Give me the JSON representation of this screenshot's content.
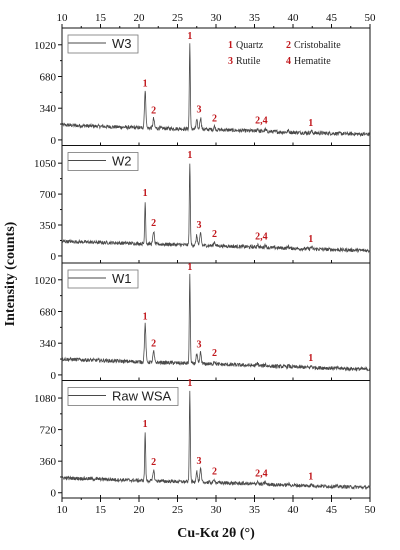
{
  "chart_data": {
    "type": "line",
    "xlabel": "Cu-Kα 2θ (°)",
    "ylabel": "Intensity (counts)",
    "xlim": [
      10,
      50
    ],
    "x_ticks": [
      "10",
      "15",
      "20",
      "25",
      "30",
      "35",
      "40",
      "45",
      "50"
    ],
    "phase_key": [
      {
        "num": "1",
        "name": "Quartz"
      },
      {
        "num": "2",
        "name": "Cristobalite"
      },
      {
        "num": "3",
        "name": "Rutile"
      },
      {
        "num": "4",
        "name": "Hematite"
      }
    ],
    "panels": [
      {
        "name": "W3",
        "ylim": [
          -60,
          1200
        ],
        "y_ticks": [
          0,
          340,
          680,
          1020
        ],
        "baseline": [
          [
            10,
            160
          ],
          [
            20,
            130
          ],
          [
            30,
            110
          ],
          [
            40,
            80
          ],
          [
            50,
            60
          ]
        ],
        "peaks": [
          {
            "x": 20.8,
            "y": 520
          },
          {
            "x": 21.9,
            "y": 230
          },
          {
            "x": 26.6,
            "y": 1030
          },
          {
            "x": 27.5,
            "y": 210
          },
          {
            "x": 28.0,
            "y": 240
          },
          {
            "x": 29.8,
            "y": 145
          },
          {
            "x": 35.4,
            "y": 120
          },
          {
            "x": 36.4,
            "y": 110
          },
          {
            "x": 39.4,
            "y": 100
          },
          {
            "x": 42.4,
            "y": 95
          }
        ],
        "labels": [
          {
            "x": 20.8,
            "text": "1"
          },
          {
            "x": 21.9,
            "text": "2"
          },
          {
            "x": 26.6,
            "text": "1"
          },
          {
            "x": 27.8,
            "text": "3"
          },
          {
            "x": 29.8,
            "text": "2"
          },
          {
            "x": 35.9,
            "text": "2,4"
          },
          {
            "x": 42.3,
            "text": "1"
          }
        ]
      },
      {
        "name": "W2",
        "ylim": [
          -80,
          1250
        ],
        "y_ticks": [
          0,
          350,
          700,
          1050
        ],
        "baseline": [
          [
            10,
            165
          ],
          [
            20,
            140
          ],
          [
            30,
            115
          ],
          [
            40,
            85
          ],
          [
            50,
            60
          ]
        ],
        "peaks": [
          {
            "x": 20.8,
            "y": 620
          },
          {
            "x": 21.9,
            "y": 280
          },
          {
            "x": 26.6,
            "y": 1050
          },
          {
            "x": 27.5,
            "y": 230
          },
          {
            "x": 28.0,
            "y": 260
          },
          {
            "x": 29.8,
            "y": 160
          },
          {
            "x": 35.4,
            "y": 130
          },
          {
            "x": 36.4,
            "y": 125
          },
          {
            "x": 39.4,
            "y": 110
          },
          {
            "x": 42.4,
            "y": 100
          }
        ],
        "labels": [
          {
            "x": 20.8,
            "text": "1"
          },
          {
            "x": 21.9,
            "text": "2"
          },
          {
            "x": 26.6,
            "text": "1"
          },
          {
            "x": 27.8,
            "text": "3"
          },
          {
            "x": 29.8,
            "text": "2"
          },
          {
            "x": 35.9,
            "text": "2,4"
          },
          {
            "x": 42.3,
            "text": "1"
          }
        ]
      },
      {
        "name": "W1",
        "ylim": [
          -60,
          1200
        ],
        "y_ticks": [
          0,
          340,
          680,
          1020
        ],
        "baseline": [
          [
            10,
            170
          ],
          [
            20,
            140
          ],
          [
            30,
            115
          ],
          [
            40,
            85
          ],
          [
            50,
            60
          ]
        ],
        "peaks": [
          {
            "x": 20.8,
            "y": 540
          },
          {
            "x": 21.9,
            "y": 250
          },
          {
            "x": 26.6,
            "y": 1070
          },
          {
            "x": 27.5,
            "y": 220
          },
          {
            "x": 28.0,
            "y": 240
          },
          {
            "x": 29.8,
            "y": 150
          },
          {
            "x": 35.4,
            "y": 125
          },
          {
            "x": 36.4,
            "y": 115
          },
          {
            "x": 39.4,
            "y": 100
          },
          {
            "x": 42.4,
            "y": 95
          }
        ],
        "labels": [
          {
            "x": 20.8,
            "text": "1"
          },
          {
            "x": 21.9,
            "text": "2"
          },
          {
            "x": 26.6,
            "text": "1"
          },
          {
            "x": 27.8,
            "text": "3"
          },
          {
            "x": 29.8,
            "text": "2"
          },
          {
            "x": 42.3,
            "text": "1"
          }
        ]
      },
      {
        "name": "Raw WSA",
        "ylim": [
          -60,
          1280
        ],
        "y_ticks": [
          0,
          360,
          720,
          1080
        ],
        "baseline": [
          [
            10,
            170
          ],
          [
            20,
            140
          ],
          [
            30,
            115
          ],
          [
            40,
            85
          ],
          [
            50,
            60
          ]
        ],
        "peaks": [
          {
            "x": 20.8,
            "y": 690
          },
          {
            "x": 21.9,
            "y": 260
          },
          {
            "x": 26.6,
            "y": 1160
          },
          {
            "x": 27.5,
            "y": 250
          },
          {
            "x": 28.0,
            "y": 270
          },
          {
            "x": 29.8,
            "y": 150
          },
          {
            "x": 35.4,
            "y": 130
          },
          {
            "x": 36.4,
            "y": 120
          },
          {
            "x": 39.4,
            "y": 100
          },
          {
            "x": 42.4,
            "y": 95
          }
        ],
        "labels": [
          {
            "x": 20.8,
            "text": "1"
          },
          {
            "x": 21.9,
            "text": "2"
          },
          {
            "x": 26.6,
            "text": "1"
          },
          {
            "x": 27.8,
            "text": "3"
          },
          {
            "x": 29.8,
            "text": "2"
          },
          {
            "x": 35.9,
            "text": "2,4"
          },
          {
            "x": 42.3,
            "text": "1"
          }
        ]
      }
    ]
  },
  "colors": {
    "trace": "#4a4a4a",
    "peak_label": "#c0161b",
    "axis": "#111111"
  }
}
